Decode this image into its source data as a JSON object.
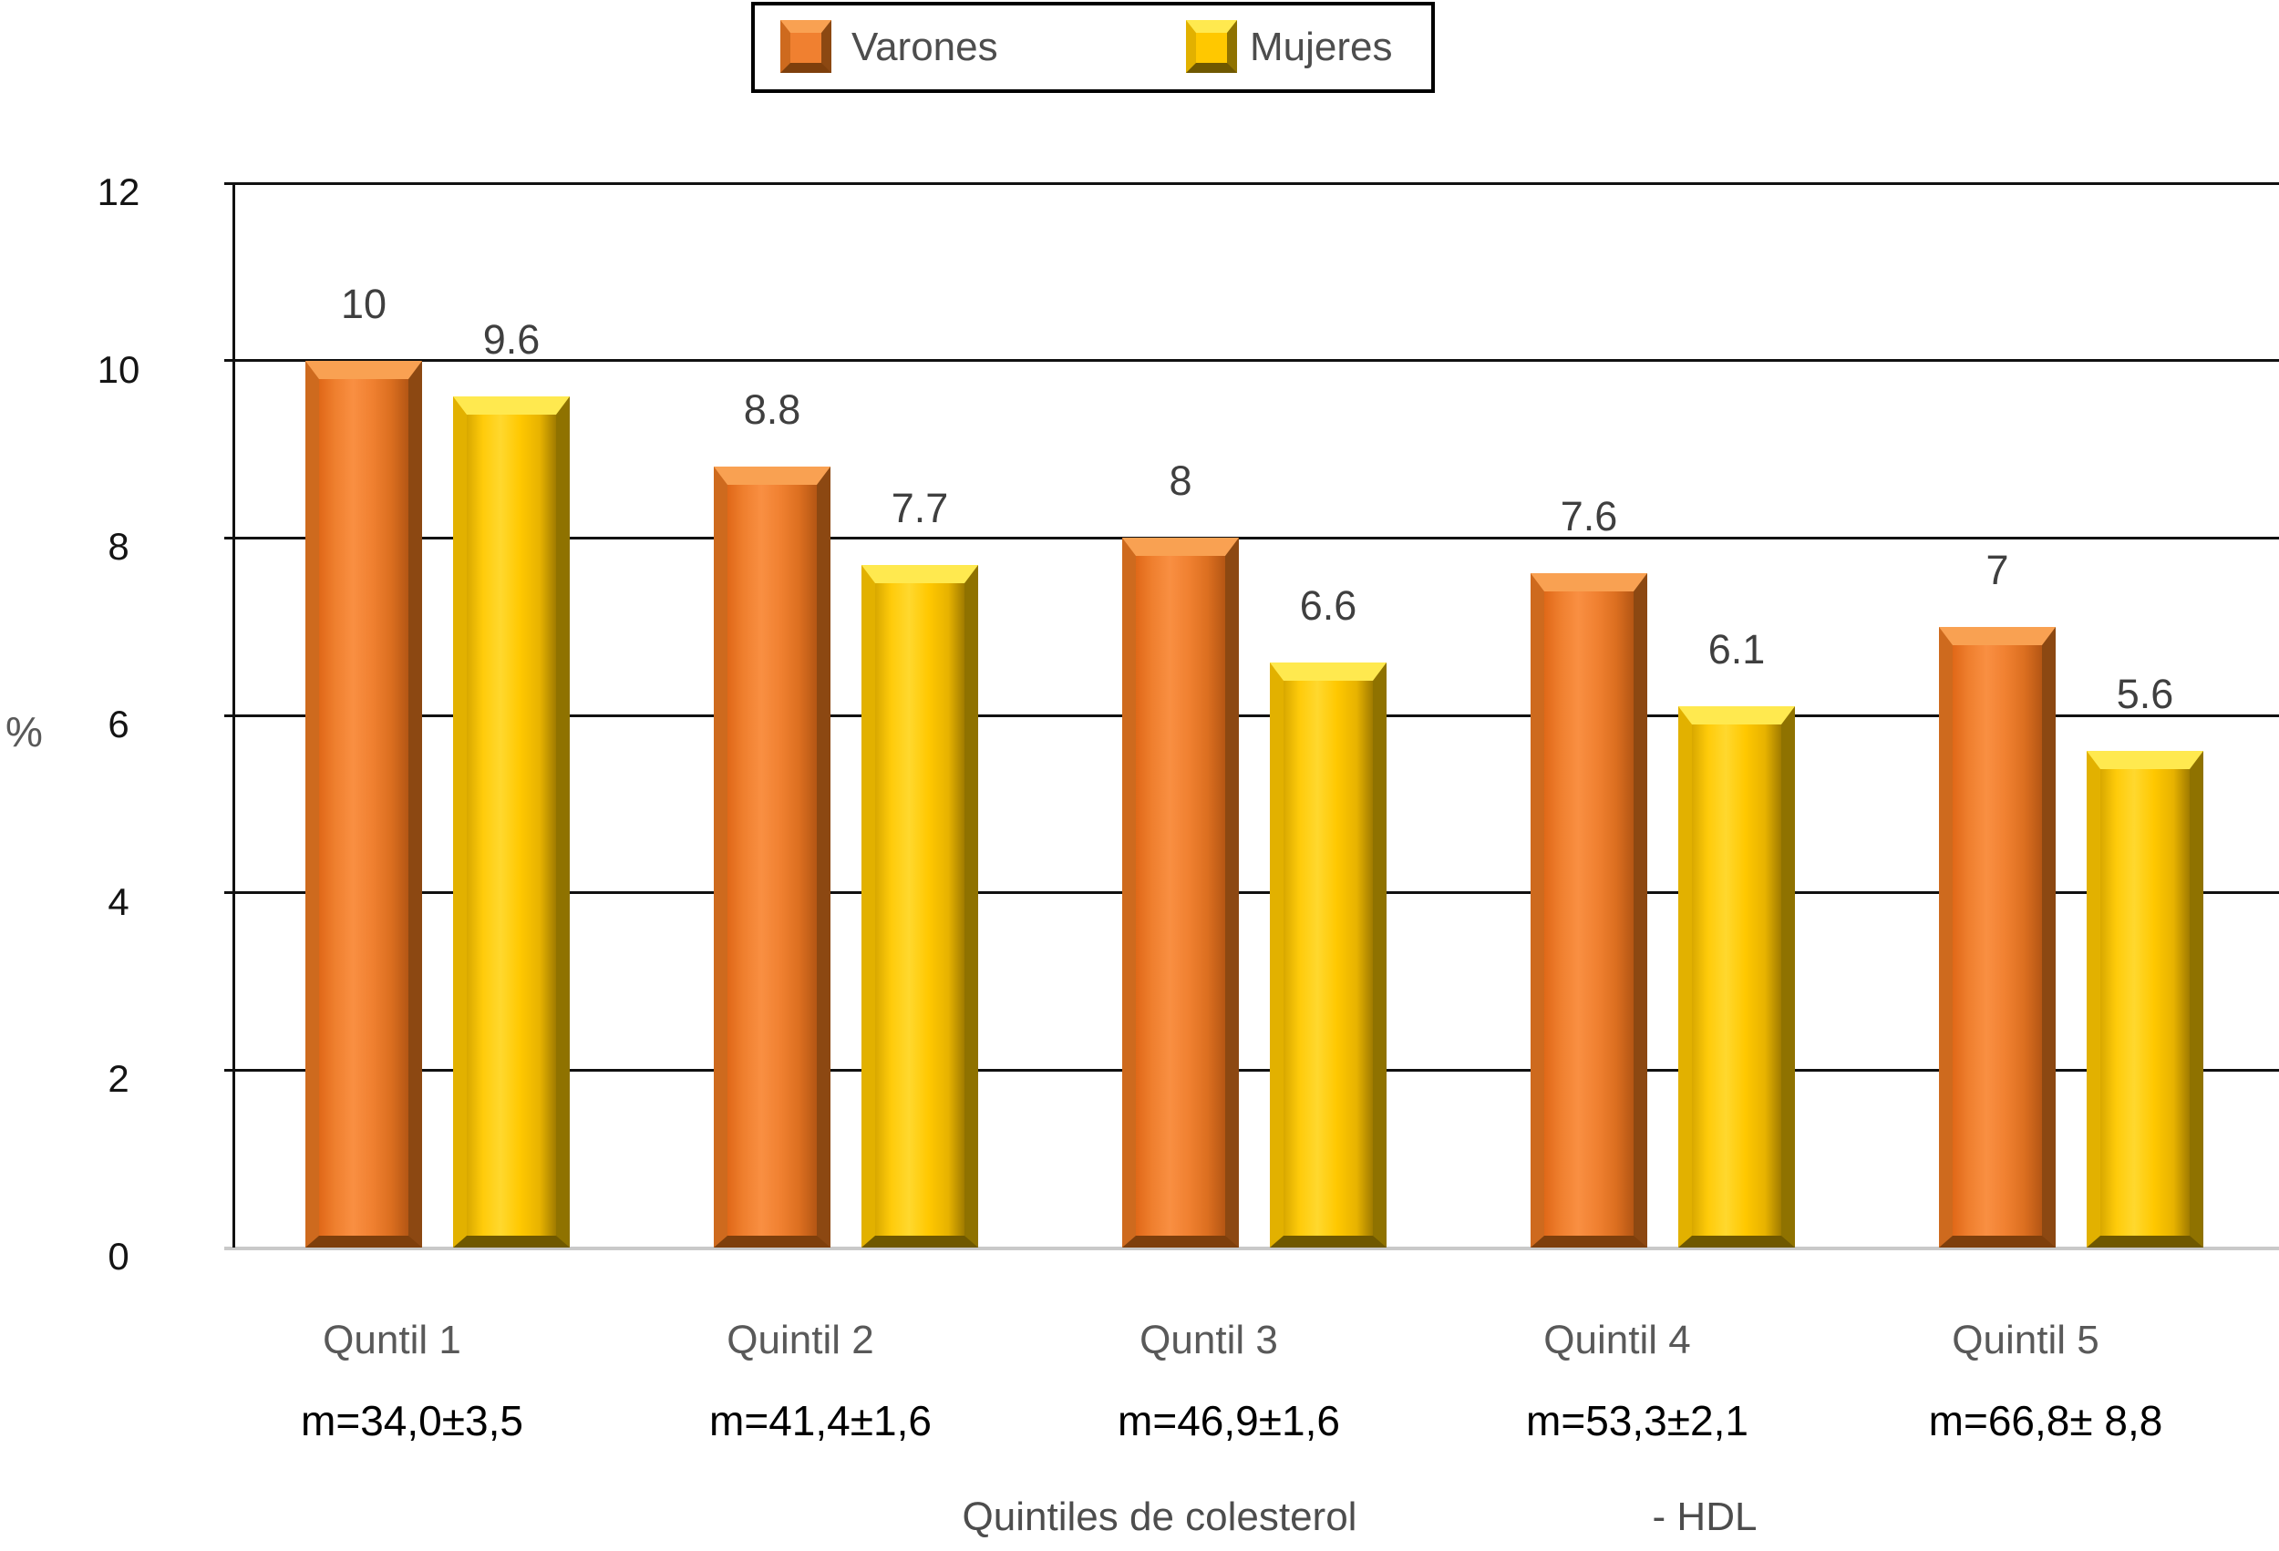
{
  "legend": {
    "items": [
      {
        "label": "Varones",
        "color": "#F08030"
      },
      {
        "label": "Mujeres",
        "color": "#FFC800"
      }
    ]
  },
  "y_axis": {
    "unit_label": "%",
    "ticks": [
      0,
      2,
      4,
      6,
      8,
      10,
      12
    ]
  },
  "x_axis": {
    "title_part_1": "Quintiles de colesterol",
    "title_part_2": "- HDL"
  },
  "chart_data": {
    "type": "bar",
    "title": "",
    "xlabel": "Quintiles de colesterol - HDL",
    "ylabel": "%",
    "ylim": [
      0,
      12
    ],
    "yticks": [
      0,
      2,
      4,
      6,
      8,
      10,
      12
    ],
    "grid": true,
    "legend_position": "top",
    "categories": [
      "Quntil 1",
      "Quintil 2",
      "Quntil 3",
      "Quintil 4",
      "Quintil 5"
    ],
    "category_means": [
      "m=34,0±3,5",
      "m=41,4±1,6",
      "m=46,9±1,6",
      "m=53,3±2,1",
      "m=66,8± 8,8"
    ],
    "series": [
      {
        "name": "Varones",
        "color": "#F08030",
        "values": [
          10,
          8.8,
          8,
          7.6,
          7
        ],
        "labels": [
          "10",
          "8.8",
          "8",
          "7.6",
          "7"
        ]
      },
      {
        "name": "Mujeres",
        "color": "#FFC800",
        "values": [
          9.6,
          7.7,
          6.6,
          6.1,
          5.6
        ],
        "labels": [
          "9.6",
          "7.7",
          "6.6",
          "6.1",
          "5.6"
        ]
      }
    ]
  }
}
